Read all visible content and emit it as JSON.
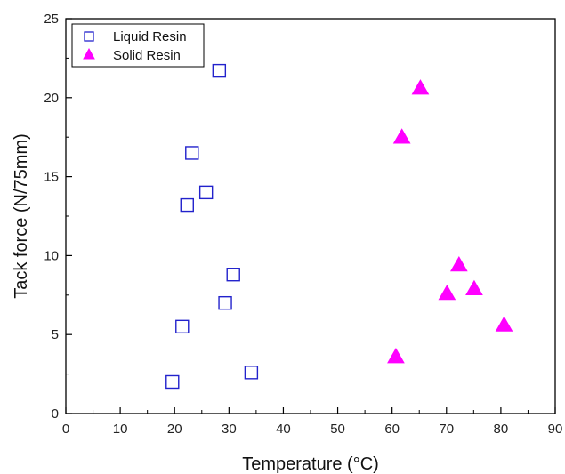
{
  "chart_data": {
    "type": "scatter",
    "xlabel": "Temperature (°C)",
    "ylabel": "Tack force (N/75mm)",
    "xlim": [
      0,
      90
    ],
    "ylim": [
      0,
      25
    ],
    "x_ticks": [
      0,
      10,
      20,
      30,
      40,
      50,
      60,
      70,
      80,
      90
    ],
    "y_ticks": [
      0,
      5,
      10,
      15,
      20,
      25
    ],
    "grid": false,
    "legend_position": "top-left",
    "series": [
      {
        "name": "Liquid Resin",
        "marker": "open-square",
        "color": "#2222cc",
        "points": [
          {
            "x": 28.2,
            "y": 21.7
          },
          {
            "x": 23.2,
            "y": 16.5
          },
          {
            "x": 25.8,
            "y": 14.0
          },
          {
            "x": 22.3,
            "y": 13.2
          },
          {
            "x": 30.8,
            "y": 8.8
          },
          {
            "x": 29.3,
            "y": 7.0
          },
          {
            "x": 21.4,
            "y": 5.5
          },
          {
            "x": 19.6,
            "y": 2.0
          },
          {
            "x": 34.1,
            "y": 2.6
          }
        ]
      },
      {
        "name": "Solid Resin",
        "marker": "filled-triangle",
        "color": "#ff00ff",
        "points": [
          {
            "x": 65.2,
            "y": 20.6
          },
          {
            "x": 61.8,
            "y": 17.5
          },
          {
            "x": 72.3,
            "y": 9.4
          },
          {
            "x": 70.1,
            "y": 7.6
          },
          {
            "x": 75.1,
            "y": 7.9
          },
          {
            "x": 80.6,
            "y": 5.6
          },
          {
            "x": 60.7,
            "y": 3.6
          }
        ]
      }
    ]
  }
}
